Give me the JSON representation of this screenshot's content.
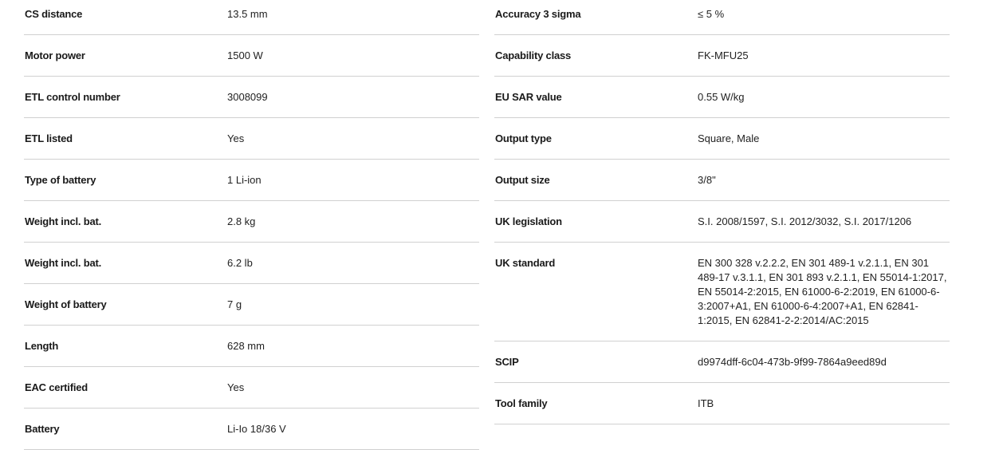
{
  "left": [
    {
      "label": "CS distance",
      "value": "13.5 mm"
    },
    {
      "label": "Motor power",
      "value": "1500 W"
    },
    {
      "label": "ETL control number",
      "value": "3008099"
    },
    {
      "label": "ETL listed",
      "value": "Yes"
    },
    {
      "label": "Type of battery",
      "value": "1 Li-ion"
    },
    {
      "label": "Weight incl. bat.",
      "value": "2.8 kg"
    },
    {
      "label": "Weight incl. bat.",
      "value": "6.2 lb"
    },
    {
      "label": "Weight of battery",
      "value": "7 g"
    },
    {
      "label": "Length",
      "value": "628 mm"
    },
    {
      "label": "EAC certified",
      "value": "Yes"
    },
    {
      "label": "Battery",
      "value": "Li-Io 18/36 V"
    }
  ],
  "right": [
    {
      "label": "Accuracy 3 sigma",
      "value": "≤ 5 %"
    },
    {
      "label": "Capability class",
      "value": "FK-MFU25"
    },
    {
      "label": "EU SAR value",
      "value": "0.55 W/kg"
    },
    {
      "label": "Output type",
      "value": "Square, Male"
    },
    {
      "label": "Output size",
      "value": "3/8\""
    },
    {
      "label": "UK legislation",
      "value": "S.I. 2008/1597, S.I. 2012/3032, S.I. 2017/1206"
    },
    {
      "label": "UK standard",
      "value": "EN 300 328 v.2.2.2, EN 301 489-1 v.2.1.1, EN 301 489-17 v.3.1.1, EN 301 893 v.2.1.1, EN 55014-1:2017, EN 55014-2:2015, EN 61000-6-2:2019, EN 61000-6-3:2007+A1, EN 61000-6-4:2007+A1, EN 62841-1:2015, EN 62841-2-2:2014/AC:2015"
    },
    {
      "label": "SCIP",
      "value": "d9974dff-6c04-473b-9f99-7864a9eed89d"
    },
    {
      "label": "Tool family",
      "value": "ITB"
    }
  ]
}
